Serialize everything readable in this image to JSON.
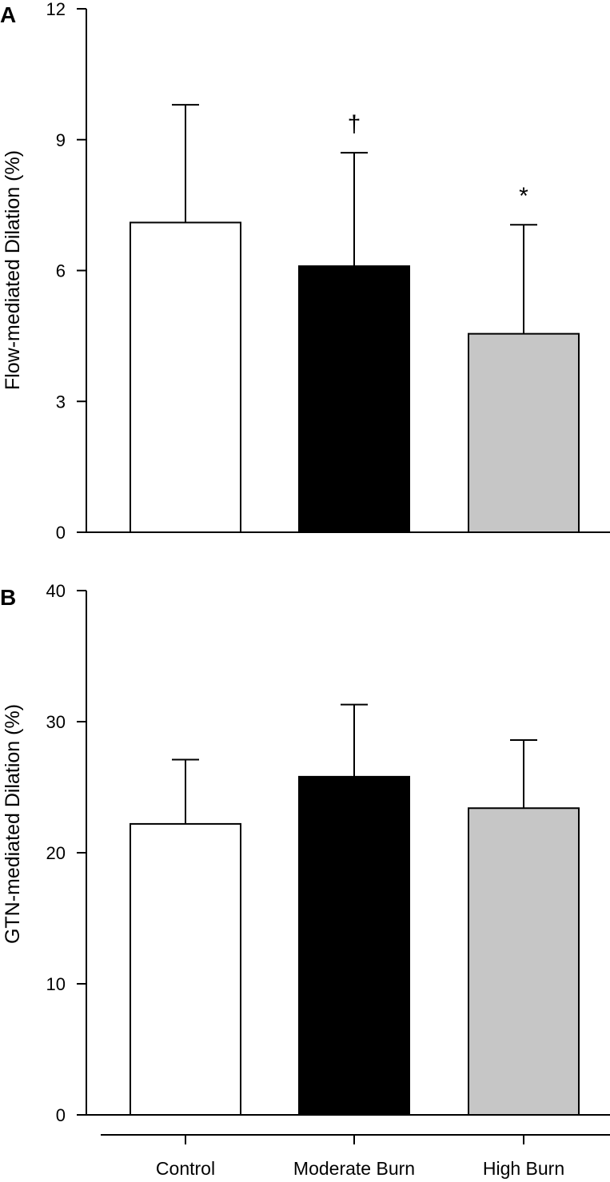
{
  "chart_data": [
    {
      "type": "bar",
      "panel_label": "A",
      "categories": [
        "Control",
        "Moderate Burn",
        "High Burn"
      ],
      "values": [
        7.1,
        6.1,
        4.55
      ],
      "errors": [
        2.7,
        2.6,
        2.5
      ],
      "bar_colors": [
        "#ffffff",
        "#000000",
        "#c6c6c6"
      ],
      "annotations": [
        "",
        "†",
        "*"
      ],
      "ylabel": "Flow-mediated Dilation (%)",
      "ylim": [
        0,
        12
      ],
      "yticks": [
        0,
        3,
        6,
        9,
        12
      ],
      "grid": false
    },
    {
      "type": "bar",
      "panel_label": "B",
      "categories": [
        "Control",
        "Moderate Burn",
        "High Burn"
      ],
      "values": [
        22.2,
        25.8,
        23.4
      ],
      "errors": [
        4.9,
        5.5,
        5.2
      ],
      "bar_colors": [
        "#ffffff",
        "#000000",
        "#c6c6c6"
      ],
      "annotations": [
        "",
        "",
        ""
      ],
      "ylabel": "GTN-mediated Dilation (%)",
      "ylim": [
        0,
        40
      ],
      "yticks": [
        0,
        10,
        20,
        30,
        40
      ],
      "grid": false
    }
  ]
}
